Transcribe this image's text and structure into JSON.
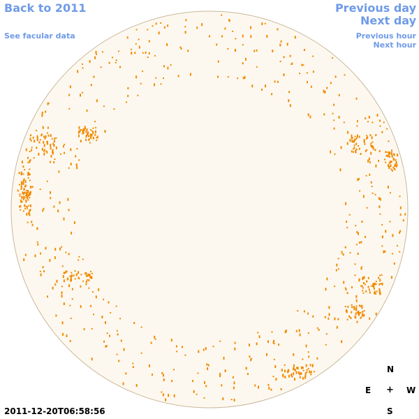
{
  "nav": {
    "back_label": "Back to 2011",
    "facular_label": "See facular data",
    "prev_day_label": "Previous day",
    "next_day_label": "Next day",
    "prev_hour_label": "Previous hour",
    "next_hour_label": "Next hour"
  },
  "observation": {
    "timestamp": "2011-12-20T06:58:56"
  },
  "compass": {
    "north": "N",
    "south": "S",
    "east": "E",
    "west": "W",
    "center": "+"
  },
  "colors": {
    "link": "#6f9be8",
    "disk_fill": "#fdf8ef",
    "disk_edge": "#c8b89a",
    "spot": "#f08a00"
  },
  "icons": {
    "compass_center": "plus-icon"
  }
}
